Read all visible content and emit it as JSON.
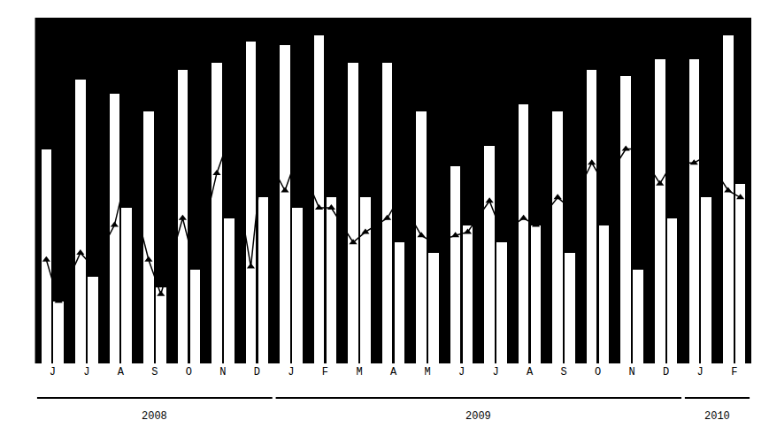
{
  "chart_data": {
    "type": "bar",
    "categories": [
      "J",
      "J",
      "A",
      "S",
      "O",
      "N",
      "D",
      "J",
      "F",
      "M",
      "A",
      "M",
      "J",
      "J",
      "A",
      "S",
      "O",
      "N",
      "D",
      "J",
      "F"
    ],
    "series": [
      {
        "color": "#ffffff",
        "values": [
          62,
          82,
          78,
          73,
          85,
          87,
          93,
          92,
          95,
          87,
          87,
          73,
          57,
          63,
          75,
          73,
          85,
          83,
          88,
          88,
          95
        ],
        "line_values": [
          30,
          32,
          40,
          30,
          42,
          55,
          28,
          50,
          45,
          35,
          42,
          37,
          37,
          47,
          42,
          48,
          58,
          62,
          52,
          58,
          50
        ]
      },
      {
        "color": "#ffffff",
        "values": [
          18,
          25,
          45,
          22,
          27,
          42,
          48,
          45,
          48,
          48,
          35,
          32,
          40,
          35,
          40,
          32,
          40,
          27,
          42,
          48,
          52
        ],
        "line_values": [
          18,
          28,
          55,
          20,
          28,
          65,
          62,
          60,
          45,
          38,
          48,
          35,
          38,
          38,
          40,
          45,
          52,
          62,
          58,
          60,
          48
        ]
      }
    ],
    "marker": "triangle-up",
    "annotations": [
      {
        "text": "2008",
        "from": 0,
        "to": 6
      },
      {
        "text": "2009",
        "from": 7,
        "to": 18
      },
      {
        "text": "2010",
        "from": 19,
        "to": 20
      }
    ],
    "ylim": [
      0,
      100
    ],
    "yticks": [],
    "tick_labels": "x",
    "grid": false
  }
}
